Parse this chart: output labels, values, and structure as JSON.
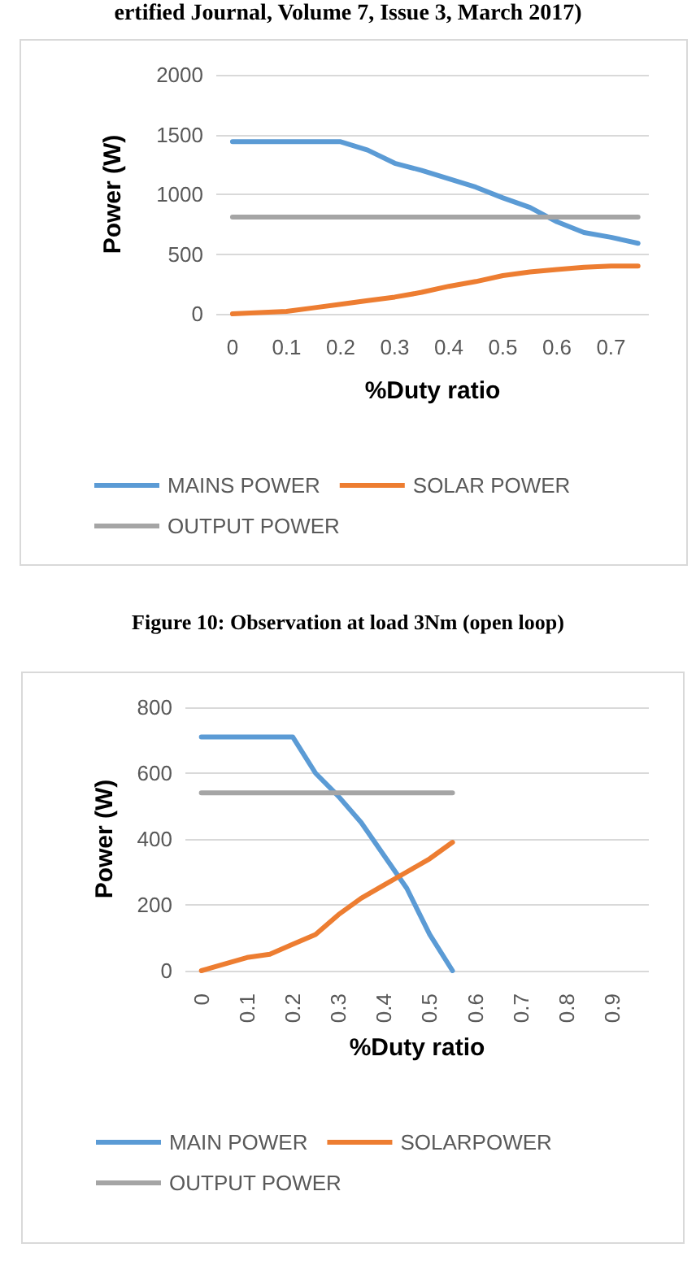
{
  "chart_data": [
    {
      "type": "line",
      "annotations": [
        "ertified Journal, Volume 7, Issue 3, March 2017)",
        "Figure 10: Observation at load 3Nm (open loop)"
      ],
      "xlabel": "%Duty ratio",
      "ylabel": "Power (W)",
      "x": [
        0,
        0.05,
        0.1,
        0.15,
        0.2,
        0.25,
        0.3,
        0.35,
        0.4,
        0.45,
        0.5,
        0.55,
        0.6,
        0.65,
        0.7,
        0.75
      ],
      "series": [
        {
          "name": "MAINS POWER",
          "color": "#5b9bd5",
          "values": [
            1440,
            1440,
            1440,
            1440,
            1440,
            1370,
            1260,
            1200,
            1130,
            1060,
            970,
            890,
            770,
            680,
            640,
            590
          ]
        },
        {
          "name": "SOLAR POWER",
          "color": "#ed7d31",
          "values": [
            0,
            10,
            20,
            50,
            80,
            110,
            140,
            180,
            230,
            270,
            320,
            350,
            370,
            390,
            400,
            400
          ]
        },
        {
          "name": "OUTPUT POWER",
          "color": "#a5a5a5",
          "values": [
            810,
            810,
            810,
            810,
            810,
            810,
            810,
            810,
            810,
            810,
            810,
            810,
            810,
            810,
            810,
            810
          ]
        }
      ],
      "xlim": [
        -0.03,
        0.77
      ],
      "xticks": [
        0,
        0.1,
        0.2,
        0.3,
        0.4,
        0.5,
        0.6,
        0.7
      ],
      "ylim": [
        0,
        2000
      ],
      "yticks": [
        0,
        500,
        1000,
        1500,
        2000
      ],
      "grid": "y",
      "legend": "bottom",
      "marker": "none",
      "line_style": "solid"
    },
    {
      "type": "line",
      "xlabel": "%Duty ratio",
      "ylabel": "Power (W)",
      "x": [
        0,
        0.05,
        0.1,
        0.15,
        0.2,
        0.25,
        0.3,
        0.35,
        0.4,
        0.45,
        0.5,
        0.55
      ],
      "series": [
        {
          "name": "MAIN POWER",
          "color": "#5b9bd5",
          "values": [
            710,
            710,
            710,
            710,
            710,
            600,
            530,
            450,
            350,
            250,
            110,
            0
          ]
        },
        {
          "name": "SOLARPOWER",
          "color": "#ed7d31",
          "values": [
            0,
            20,
            40,
            50,
            80,
            110,
            170,
            220,
            260,
            300,
            340,
            390
          ]
        },
        {
          "name": "OUTPUT POWER",
          "color": "#a5a5a5",
          "values": [
            540,
            540,
            540,
            540,
            540,
            540,
            540,
            540,
            540,
            540,
            540,
            540
          ]
        }
      ],
      "xlim": [
        -0.035,
        0.98
      ],
      "xticks": [
        0,
        0.1,
        0.2,
        0.3,
        0.4,
        0.5,
        0.6,
        0.7,
        0.8,
        0.9
      ],
      "ylim": [
        0,
        800
      ],
      "yticks": [
        0,
        200,
        400,
        600,
        800
      ],
      "grid": "y",
      "legend": "bottom",
      "marker": "none",
      "line_style": "solid"
    }
  ]
}
